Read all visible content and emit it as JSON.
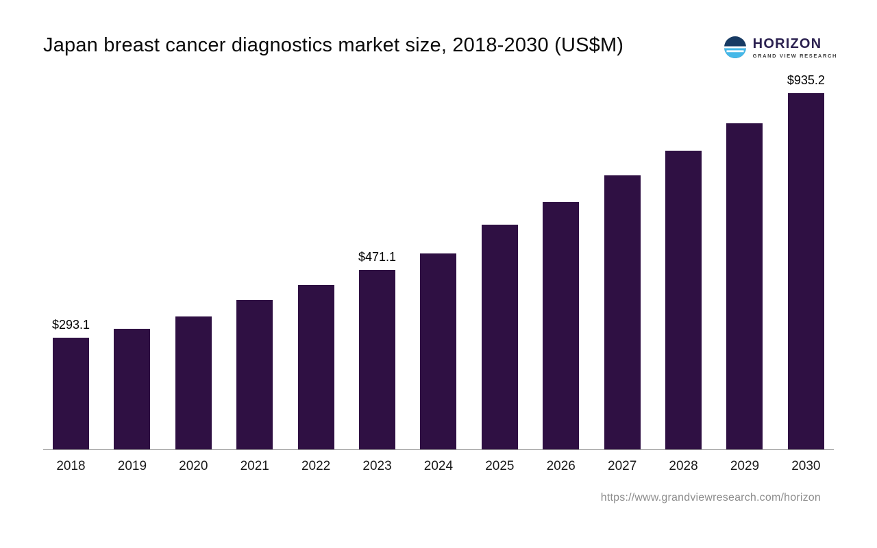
{
  "title": "Japan breast cancer diagnostics market size, 2018-2030 (US$M)",
  "logo": {
    "name": "HORIZON",
    "subtitle": "GRAND VIEW RESEARCH",
    "icon": "horizon-circle-icon",
    "icon_colors": {
      "top": "#173a63",
      "bottom": "#45b8e8",
      "lines": "#ffffff"
    },
    "name_color": "#2b2150"
  },
  "footer": {
    "url": "https://www.grandviewresearch.com/horizon"
  },
  "chart_data": {
    "type": "bar",
    "title": "Japan breast cancer diagnostics market size, 2018-2030 (US$M)",
    "xlabel": "",
    "ylabel": "US$M",
    "categories": [
      "2018",
      "2019",
      "2020",
      "2021",
      "2022",
      "2023",
      "2024",
      "2025",
      "2026",
      "2027",
      "2028",
      "2029",
      "2030"
    ],
    "values": [
      293.1,
      317.0,
      349.0,
      392.0,
      431.0,
      471.1,
      514.0,
      590.0,
      649.0,
      719.0,
      785.0,
      856.0,
      935.2
    ],
    "labels": [
      "$293.1",
      "",
      "",
      "",
      "",
      "$471.1",
      "",
      "",
      "",
      "",
      "",
      "",
      "$935.2"
    ],
    "ylim": [
      0,
      960
    ],
    "grid": false,
    "legend": false,
    "bar_color": "#2f1043",
    "axis_color": "#9a9a9a",
    "annotation_note": "only 2018, 2023 and 2030 bars carry value labels; intermediate values estimated from bar heights"
  }
}
